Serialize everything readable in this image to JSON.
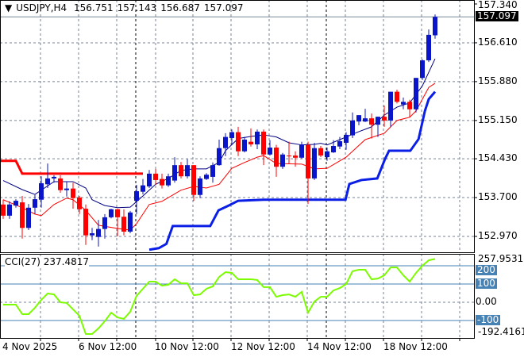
{
  "header": {
    "symbol": "USDJPY,H4",
    "open": "156.751",
    "high": "157.143",
    "low": "156.687",
    "close": "157.097"
  },
  "price_axis": {
    "labels": [
      "157.340",
      "156.610",
      "155.880",
      "155.150",
      "154.430",
      "153.700",
      "152.970"
    ],
    "values": [
      157.34,
      156.61,
      155.88,
      155.15,
      154.43,
      153.7,
      152.97
    ],
    "current": "157.097",
    "current_value": 157.097
  },
  "cci": {
    "label": "CCI(27) 237.4817",
    "max_label": "257.9531",
    "min_label": "-192.4161",
    "levels": [
      {
        "label": "200",
        "value": 200
      },
      {
        "label": "100",
        "value": 100
      },
      {
        "label": "-100",
        "value": -100
      }
    ],
    "zero_label": "0.00",
    "values": [
      -13,
      -13,
      -13,
      -65,
      -65,
      -30,
      13,
      48,
      43,
      0,
      -4,
      -39,
      -74,
      -174,
      -174,
      -143,
      -104,
      -57,
      -83,
      -91,
      -52,
      35,
      74,
      113,
      113,
      91,
      96,
      126,
      104,
      104,
      39,
      43,
      74,
      87,
      139,
      165,
      161,
      126,
      126,
      126,
      122,
      83,
      83,
      30,
      39,
      43,
      30,
      57,
      -57,
      4,
      30,
      30,
      65,
      78,
      100,
      170,
      178,
      178,
      126,
      130,
      148,
      191,
      191,
      148,
      113,
      161,
      200,
      230,
      237.48
    ]
  },
  "time_axis": {
    "labels": [
      {
        "text": "4 Nov 2025",
        "index": 0
      },
      {
        "text": "6 Nov 12:00",
        "index": 12
      },
      {
        "text": "10 Nov 12:00",
        "index": 24
      },
      {
        "text": "12 Nov 12:00",
        "index": 36
      },
      {
        "text": "14 Nov 12:00",
        "index": 48
      },
      {
        "text": "18 Nov 12:00",
        "index": 60
      }
    ]
  },
  "colors": {
    "bull": "#0a14c8",
    "bear": "#ff0000",
    "ma_fast": "#000080",
    "ma_slow": "#ff0000",
    "stop_up": "#0a1ee6",
    "stop_down": "#ff0000",
    "cci": "#7cfc00",
    "level": "#4682b4",
    "grid": "#7a8290"
  },
  "candles": [
    [
      153.57,
      153.66,
      153.3,
      153.36
    ],
    [
      153.36,
      153.63,
      153.3,
      153.57
    ],
    [
      153.55,
      153.67,
      153.51,
      153.64
    ],
    [
      153.61,
      153.73,
      152.93,
      153.13
    ],
    [
      153.13,
      153.58,
      153.09,
      153.51
    ],
    [
      153.51,
      153.75,
      153.39,
      153.67
    ],
    [
      153.66,
      154.1,
      153.51,
      153.97
    ],
    [
      153.95,
      154.34,
      153.88,
      154.06
    ],
    [
      154.06,
      154.12,
      153.98,
      154.09
    ],
    [
      154.06,
      154.12,
      153.79,
      153.84
    ],
    [
      153.84,
      154.0,
      153.72,
      153.87
    ],
    [
      153.87,
      153.98,
      153.49,
      153.69
    ],
    [
      153.7,
      153.73,
      153.39,
      153.48
    ],
    [
      153.49,
      153.57,
      152.81,
      152.99
    ],
    [
      152.99,
      153.13,
      152.9,
      153.03
    ],
    [
      152.96,
      153.28,
      152.78,
      153.11
    ],
    [
      153.11,
      153.39,
      152.93,
      153.33
    ],
    [
      153.33,
      153.49,
      153.31,
      153.48
    ],
    [
      153.48,
      153.49,
      152.97,
      153.33
    ],
    [
      153.34,
      153.48,
      152.99,
      153.06
    ],
    [
      153.06,
      153.45,
      153.03,
      153.42
    ],
    [
      153.64,
      153.94,
      153.39,
      153.82
    ],
    [
      153.81,
      154.05,
      153.76,
      153.93
    ],
    [
      153.91,
      154.22,
      153.88,
      154.15
    ],
    [
      154.15,
      154.24,
      153.94,
      154.03
    ],
    [
      154.05,
      154.15,
      153.87,
      153.93
    ],
    [
      153.93,
      154.15,
      153.9,
      154.1
    ],
    [
      154.02,
      154.46,
      153.98,
      154.31
    ],
    [
      154.31,
      154.37,
      154.06,
      154.1
    ],
    [
      154.1,
      154.42,
      154.06,
      154.31
    ],
    [
      154.31,
      154.31,
      153.64,
      153.75
    ],
    [
      153.75,
      154.1,
      153.69,
      154.06
    ],
    [
      154.05,
      154.16,
      154.03,
      154.13
    ],
    [
      154.09,
      154.36,
      153.98,
      154.31
    ],
    [
      154.31,
      154.79,
      154.3,
      154.63
    ],
    [
      154.63,
      154.91,
      154.48,
      154.84
    ],
    [
      154.82,
      154.98,
      154.69,
      154.93
    ],
    [
      154.93,
      155.03,
      154.48,
      154.57
    ],
    [
      154.57,
      154.84,
      154.55,
      154.79
    ],
    [
      154.75,
      155.0,
      154.66,
      154.7
    ],
    [
      154.7,
      154.98,
      154.61,
      154.94
    ],
    [
      154.94,
      154.98,
      154.31,
      154.51
    ],
    [
      154.51,
      154.78,
      154.49,
      154.64
    ],
    [
      154.64,
      154.69,
      154.09,
      154.28
    ],
    [
      154.28,
      154.54,
      154.24,
      154.51
    ],
    [
      154.49,
      154.75,
      154.33,
      154.48
    ],
    [
      154.49,
      154.57,
      154.28,
      154.45
    ],
    [
      154.45,
      154.75,
      154.43,
      154.7
    ],
    [
      154.69,
      154.75,
      153.58,
      154.06
    ],
    [
      154.06,
      154.73,
      154.03,
      154.63
    ],
    [
      154.63,
      154.67,
      154.46,
      154.49
    ],
    [
      154.46,
      154.64,
      154.39,
      154.57
    ],
    [
      154.55,
      154.78,
      154.54,
      154.67
    ],
    [
      154.66,
      154.84,
      154.61,
      154.76
    ],
    [
      154.73,
      154.93,
      154.6,
      154.88
    ],
    [
      154.87,
      155.3,
      154.82,
      155.15
    ],
    [
      155.13,
      155.25,
      155.06,
      155.25
    ],
    [
      155.13,
      155.37,
      155.12,
      155.19
    ],
    [
      155.19,
      155.28,
      154.81,
      155.07
    ],
    [
      155.07,
      155.22,
      154.84,
      155.22
    ],
    [
      155.22,
      155.43,
      155.03,
      155.15
    ],
    [
      155.15,
      155.69,
      155.03,
      155.69
    ],
    [
      155.69,
      155.73,
      155.47,
      155.5
    ],
    [
      155.45,
      155.58,
      155.36,
      155.5
    ],
    [
      155.5,
      155.54,
      155.21,
      155.36
    ],
    [
      155.36,
      155.95,
      155.3,
      155.95
    ],
    [
      155.95,
      156.3,
      155.91,
      156.28
    ],
    [
      156.28,
      156.86,
      156.25,
      156.76
    ],
    [
      156.751,
      157.143,
      156.687,
      157.097
    ]
  ],
  "ma_fast": [
    [
      0,
      154.02
    ],
    [
      3,
      153.85
    ],
    [
      5,
      153.76
    ],
    [
      8,
      154.0
    ],
    [
      11,
      154.0
    ],
    [
      13,
      153.88
    ],
    [
      14,
      153.66
    ],
    [
      16,
      153.55
    ],
    [
      18,
      153.51
    ],
    [
      20,
      153.52
    ],
    [
      22,
      153.73
    ],
    [
      24,
      153.95
    ],
    [
      26,
      154.06
    ],
    [
      28,
      154.21
    ],
    [
      30,
      154.24
    ],
    [
      32,
      154.24
    ],
    [
      34,
      154.36
    ],
    [
      35,
      154.58
    ],
    [
      37,
      154.81
    ],
    [
      39,
      154.85
    ],
    [
      41,
      154.88
    ],
    [
      43,
      154.84
    ],
    [
      45,
      154.73
    ],
    [
      47,
      154.69
    ],
    [
      49,
      154.7
    ],
    [
      50,
      154.72
    ],
    [
      51,
      154.69
    ],
    [
      53,
      154.79
    ],
    [
      56,
      154.94
    ],
    [
      58,
      155.03
    ],
    [
      60,
      155.25
    ],
    [
      62,
      155.4
    ],
    [
      64,
      155.48
    ],
    [
      66,
      155.8
    ],
    [
      68,
      156.31
    ]
  ],
  "ma_slow": [
    [
      0,
      153.66
    ],
    [
      3,
      153.51
    ],
    [
      5,
      153.39
    ],
    [
      6,
      153.36
    ],
    [
      8,
      153.57
    ],
    [
      10,
      153.69
    ],
    [
      11,
      153.66
    ],
    [
      13,
      153.46
    ],
    [
      15,
      153.18
    ],
    [
      18,
      153.12
    ],
    [
      20,
      153.09
    ],
    [
      21,
      153.21
    ],
    [
      23,
      153.57
    ],
    [
      25,
      153.63
    ],
    [
      28,
      153.84
    ],
    [
      30,
      153.91
    ],
    [
      32,
      153.88
    ],
    [
      34,
      153.95
    ],
    [
      36,
      154.25
    ],
    [
      38,
      154.36
    ],
    [
      40,
      154.46
    ],
    [
      41,
      154.49
    ],
    [
      43,
      154.34
    ],
    [
      47,
      154.33
    ],
    [
      49,
      154.24
    ],
    [
      51,
      154.25
    ],
    [
      54,
      154.46
    ],
    [
      57,
      154.79
    ],
    [
      60,
      154.91
    ],
    [
      62,
      155.15
    ],
    [
      64,
      155.21
    ],
    [
      65,
      155.33
    ],
    [
      67,
      155.77
    ],
    [
      68,
      155.85
    ]
  ],
  "stop_down": [
    [
      -0.5,
      154.39
    ],
    [
      2,
      154.39
    ],
    [
      3,
      154.15
    ],
    [
      22,
      154.15
    ]
  ],
  "stop_up": [
    [
      23,
      152.72
    ],
    [
      24.5,
      152.75
    ],
    [
      25.7,
      152.83
    ],
    [
      26.7,
      153.165
    ],
    [
      32.6,
      153.165
    ],
    [
      33.9,
      153.46
    ],
    [
      35.5,
      153.55
    ],
    [
      37,
      153.64
    ],
    [
      41,
      153.66
    ],
    [
      53.9,
      153.66
    ],
    [
      54.5,
      153.955
    ],
    [
      56.4,
      154.03
    ],
    [
      58.9,
      154.06
    ],
    [
      60.1,
      154.42
    ],
    [
      60.75,
      154.58
    ],
    [
      64.1,
      154.58
    ],
    [
      65.4,
      154.8
    ],
    [
      66.4,
      155.33
    ],
    [
      67,
      155.55
    ],
    [
      68,
      155.69
    ]
  ]
}
